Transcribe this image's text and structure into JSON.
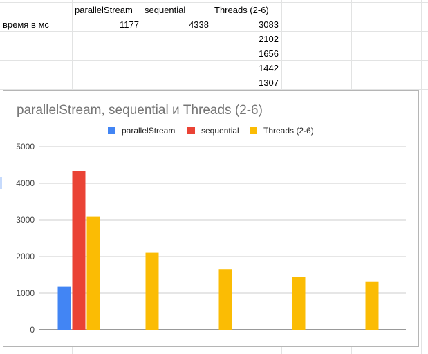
{
  "sheet": {
    "headers": [
      "parallelStream",
      "sequential",
      "Threads (2-6)"
    ],
    "row_label": "время в мс",
    "rows": [
      [
        "1177",
        "4338",
        "3083"
      ],
      [
        "",
        "",
        "2102"
      ],
      [
        "",
        "",
        "1656"
      ],
      [
        "",
        "",
        "1442"
      ],
      [
        "",
        "",
        "1307"
      ]
    ]
  },
  "chart_data": {
    "type": "bar",
    "title": "parallelStream, sequential и Threads (2-6)",
    "legend_position": "top",
    "grid": true,
    "ylim": [
      0,
      5000
    ],
    "yticks": [
      0,
      1000,
      2000,
      3000,
      4000,
      5000
    ],
    "ytick_labels": [
      "0",
      "1000",
      "2000",
      "3000",
      "4000",
      "5000"
    ],
    "categories": [
      "",
      "",
      "",
      "",
      ""
    ],
    "series": [
      {
        "name": "parallelStream",
        "color": "#4285f4",
        "values": [
          1177,
          null,
          null,
          null,
          null
        ]
      },
      {
        "name": "sequential",
        "color": "#ea4335",
        "values": [
          4338,
          null,
          null,
          null,
          null
        ]
      },
      {
        "name": "Threads (2-6)",
        "color": "#fbbc04",
        "values": [
          3083,
          2102,
          1656,
          1442,
          1307
        ]
      }
    ]
  }
}
